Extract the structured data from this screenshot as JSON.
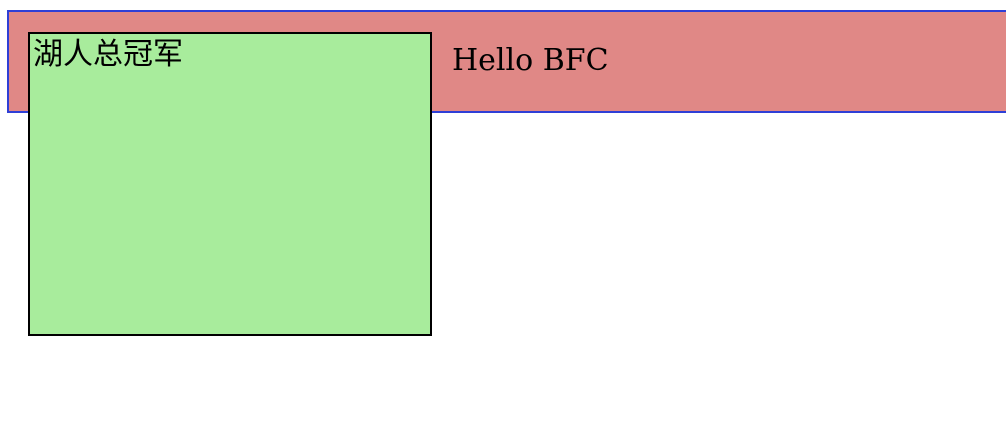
{
  "page": {
    "float_box_text": "湖人总冠军",
    "bfc_text": "Hello BFC"
  },
  "colors": {
    "container_background": "#e08886",
    "container_border": "#2f3fd6",
    "float_box_background": "#a8ec9c",
    "float_box_border": "#000000"
  }
}
